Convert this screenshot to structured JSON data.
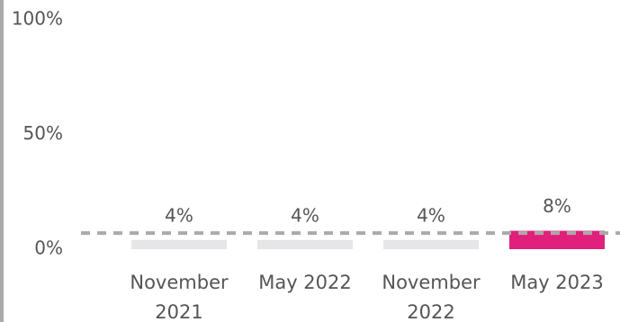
{
  "chart_data": {
    "type": "bar",
    "categories": [
      "November 2021",
      "May 2022",
      "November 2022",
      "May 2023"
    ],
    "values": [
      4,
      4,
      4,
      8
    ],
    "value_labels": [
      "4%",
      "4%",
      "4%",
      "8%"
    ],
    "colors": [
      "#e6e6e8",
      "#e6e6e8",
      "#e6e6e8",
      "#e0207c"
    ],
    "reference_line": 7,
    "ylim": [
      0,
      100
    ],
    "yticks": [
      {
        "value": 0,
        "label": "0%"
      },
      {
        "value": 50,
        "label": "50%"
      },
      {
        "value": 100,
        "label": "100%"
      }
    ]
  }
}
